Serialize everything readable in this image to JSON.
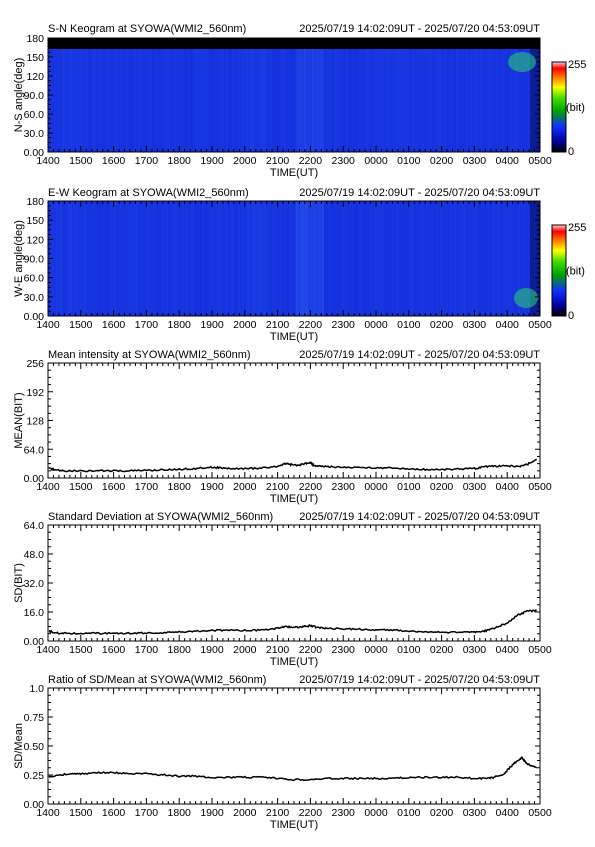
{
  "time_range": "2025/07/19 14:02:09UT - 2025/07/20 04:53:09UT",
  "time_ticks": [
    "1400",
    "1500",
    "1600",
    "1700",
    "1800",
    "1900",
    "2000",
    "2100",
    "2200",
    "2300",
    "0000",
    "0100",
    "0200",
    "0300",
    "0400",
    "0500"
  ],
  "colors": {
    "axis": "#000000",
    "line": "#000000",
    "keogram_base": "#1a3fd0",
    "keogram_night": "#000000"
  },
  "chart_data": [
    {
      "type": "heatmap",
      "title": "S-N Keogram at SYOWA(WMI2_560nm)",
      "xlabel": "TIME(UT)",
      "ylabel": "N-S angle(deg)",
      "ylim": [
        0,
        180
      ],
      "yticks": [
        "0.00",
        "30.0",
        "60.0",
        "90.0",
        "120",
        "150",
        "180"
      ],
      "colorbar": {
        "max_label": "255",
        "unit_label": "(bit)",
        "min_label": "0",
        "range": [
          0,
          255
        ]
      },
      "note": "dark band near top at 0-170 deg region above ~170 deg; green patch near 0430-0500 at 140-170 deg"
    },
    {
      "type": "heatmap",
      "title": "E-W Keogram at SYOWA(WMI2_560nm)",
      "xlabel": "TIME(UT)",
      "ylabel": "W-E angle(deg)",
      "ylim": [
        0,
        180
      ],
      "yticks": [
        "0.00",
        "30.0",
        "60.0",
        "90.0",
        "120",
        "150",
        "180"
      ],
      "colorbar": {
        "max_label": "255",
        "unit_label": "(bit)",
        "min_label": "0",
        "range": [
          0,
          255
        ]
      }
    },
    {
      "type": "line",
      "title": "Mean intensity at SYOWA(WMI2_560nm)",
      "xlabel": "TIME(UT)",
      "ylabel": "MEAN(BIT)",
      "xlim": [
        14.0,
        29.0
      ],
      "ylim": [
        0,
        256
      ],
      "yticks": [
        "0.00",
        "64.0",
        "128",
        "192",
        "256"
      ],
      "series": [
        {
          "x": [
            14.03,
            14.2,
            14.5,
            15.0,
            15.5,
            16.0,
            16.5,
            17.0,
            17.5,
            18.0,
            18.5,
            18.9,
            19.2,
            19.5,
            20.0,
            20.5,
            21.0,
            21.2,
            21.4,
            21.6,
            21.8,
            22.0,
            22.1,
            22.3,
            22.6,
            23.0,
            23.5,
            24.0,
            24.5,
            25.0,
            25.5,
            26.0,
            26.5,
            27.0,
            27.3,
            27.6,
            28.0,
            28.4,
            28.6,
            28.9
          ],
          "values": [
            22,
            18,
            16,
            16,
            16,
            16,
            16,
            17,
            18,
            19,
            21,
            24,
            23,
            21,
            21,
            22,
            26,
            32,
            30,
            28,
            31,
            35,
            28,
            26,
            25,
            24,
            23,
            23,
            22,
            20,
            19,
            19,
            20,
            21,
            25,
            26,
            27,
            26,
            30,
            42
          ]
        }
      ]
    },
    {
      "type": "line",
      "title": "Standard Deviation at SYOWA(WMI2_560nm)",
      "xlabel": "TIME(UT)",
      "ylabel": "SD(BIT)",
      "xlim": [
        14.0,
        29.0
      ],
      "ylim": [
        0,
        64
      ],
      "yticks": [
        "0.00",
        "16.0",
        "32.0",
        "48.0",
        "64.0"
      ],
      "series": [
        {
          "x": [
            14.03,
            14.2,
            14.5,
            15.0,
            15.5,
            16.0,
            16.5,
            17.0,
            17.5,
            18.0,
            18.5,
            19.0,
            19.5,
            20.0,
            20.5,
            21.0,
            21.2,
            21.5,
            21.8,
            22.0,
            22.2,
            22.5,
            23.0,
            23.5,
            24.0,
            24.5,
            25.0,
            25.5,
            26.0,
            26.5,
            27.0,
            27.3,
            27.6,
            28.0,
            28.3,
            28.6,
            28.9
          ],
          "values": [
            5.5,
            4.5,
            4.2,
            4.2,
            4.2,
            4.2,
            4.3,
            4.4,
            4.6,
            5.0,
            5.5,
            6.0,
            5.8,
            5.8,
            6.0,
            7.0,
            8.0,
            7.5,
            8.0,
            8.5,
            7.5,
            7.0,
            6.8,
            6.5,
            6.2,
            6.0,
            5.5,
            5.0,
            4.8,
            4.8,
            5.0,
            5.5,
            7.0,
            10.0,
            14.0,
            16.5,
            16.8
          ]
        }
      ]
    },
    {
      "type": "line",
      "title": "Ratio of SD/Mean at SYOWA(WMI2_560nm)",
      "xlabel": "TIME(UT)",
      "ylabel": "SD/Mean",
      "xlim": [
        14.0,
        29.0
      ],
      "ylim": [
        0,
        1.0
      ],
      "yticks": [
        "0.00",
        "0.25",
        "0.50",
        "0.75",
        "1.0"
      ],
      "series": [
        {
          "x": [
            14.03,
            14.3,
            14.7,
            15.0,
            15.5,
            16.0,
            16.5,
            17.0,
            17.5,
            18.0,
            18.5,
            19.0,
            19.5,
            20.0,
            20.5,
            21.0,
            21.5,
            22.0,
            22.5,
            23.0,
            23.5,
            24.0,
            24.5,
            25.0,
            25.5,
            26.0,
            26.5,
            27.0,
            27.3,
            27.6,
            27.9,
            28.1,
            28.3,
            28.45,
            28.6,
            28.9
          ],
          "values": [
            0.23,
            0.25,
            0.26,
            0.26,
            0.27,
            0.27,
            0.26,
            0.26,
            0.25,
            0.24,
            0.24,
            0.23,
            0.23,
            0.23,
            0.23,
            0.22,
            0.21,
            0.21,
            0.22,
            0.22,
            0.22,
            0.22,
            0.22,
            0.23,
            0.23,
            0.23,
            0.23,
            0.22,
            0.22,
            0.23,
            0.26,
            0.32,
            0.37,
            0.4,
            0.35,
            0.31
          ]
        }
      ]
    }
  ]
}
